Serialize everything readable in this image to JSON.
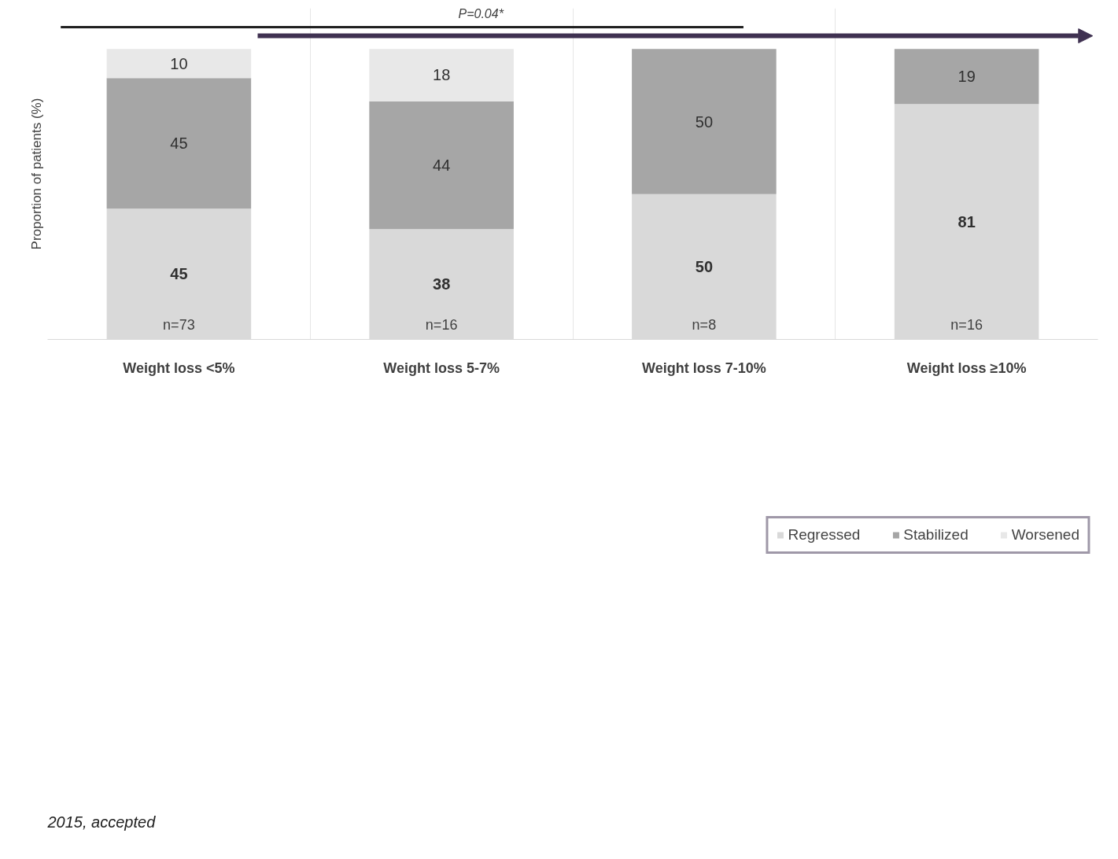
{
  "chart_data": {
    "type": "bar",
    "stacked": true,
    "ylabel": "Proportion of patients (%)",
    "categories": [
      "Weight loss <5%",
      "Weight loss 5-7%",
      "Weight loss 7-10%",
      "Weight loss ≥10%"
    ],
    "series": [
      {
        "name": "Regressed",
        "color": "#d9d9d9",
        "values": [
          45,
          38,
          50,
          81
        ],
        "value_labels": [
          "45",
          "38",
          "50",
          "81"
        ]
      },
      {
        "name": "Stabilized",
        "color": "#a6a6a6",
        "values": [
          45,
          44,
          50,
          19
        ],
        "value_labels": [
          "45",
          "44",
          "50",
          "19"
        ]
      },
      {
        "name": "Worsened",
        "color": "#e8e8e8",
        "values": [
          10,
          18,
          0,
          0
        ],
        "value_labels": [
          "10",
          "18",
          null,
          null
        ]
      }
    ],
    "ylim": [
      0,
      100
    ],
    "tick_labels": "x",
    "grid": "x",
    "legend": "bottom",
    "annotations": [
      "n=73",
      "n=16",
      "n=8",
      "n=16",
      "P=0.04*",
      "2015, accepted"
    ]
  }
}
